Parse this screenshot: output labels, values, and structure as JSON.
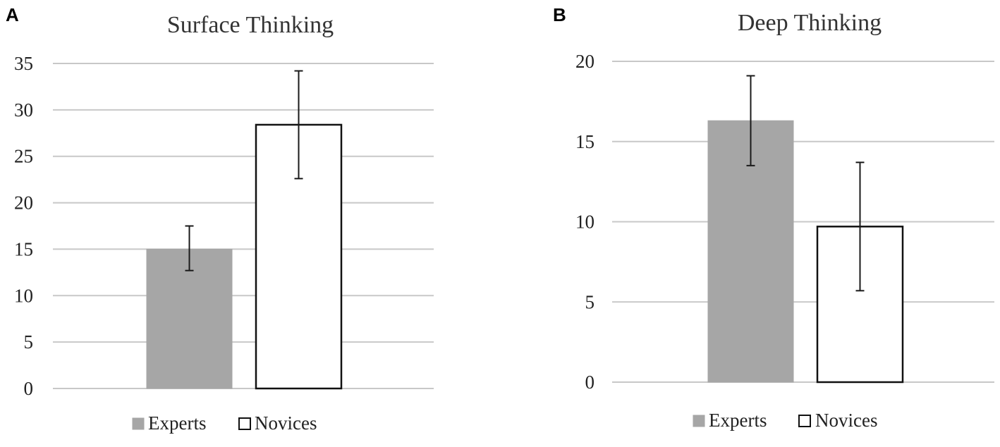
{
  "chart_data": [
    {
      "type": "bar",
      "panel_label": "A",
      "title": "Surface Thinking",
      "xlabel": "",
      "ylabel": "",
      "ylim": [
        0,
        35
      ],
      "yticks": [
        "0",
        "5",
        "10",
        "15",
        "20",
        "25",
        "30",
        "35"
      ],
      "grid": true,
      "legend_position": "bottom",
      "series": [
        {
          "name": "Experts",
          "value": 15.0,
          "error_low": 12.7,
          "error_high": 17.5,
          "color": "#a6a6a6",
          "outline": "#a6a6a6"
        },
        {
          "name": "Novices",
          "value": 28.4,
          "error_low": 22.6,
          "error_high": 34.2,
          "color": "#ffffff",
          "outline": "#111111"
        }
      ]
    },
    {
      "type": "bar",
      "panel_label": "B",
      "title": "Deep Thinking",
      "xlabel": "",
      "ylabel": "",
      "ylim": [
        0,
        20
      ],
      "yticks": [
        "0",
        "5",
        "10",
        "15",
        "20"
      ],
      "grid": true,
      "legend_position": "bottom",
      "series": [
        {
          "name": "Experts",
          "value": 16.3,
          "error_low": 13.5,
          "error_high": 19.1,
          "color": "#a6a6a6",
          "outline": "#a6a6a6"
        },
        {
          "name": "Novices",
          "value": 9.7,
          "error_low": 5.7,
          "error_high": 13.7,
          "color": "#ffffff",
          "outline": "#111111"
        }
      ]
    }
  ]
}
